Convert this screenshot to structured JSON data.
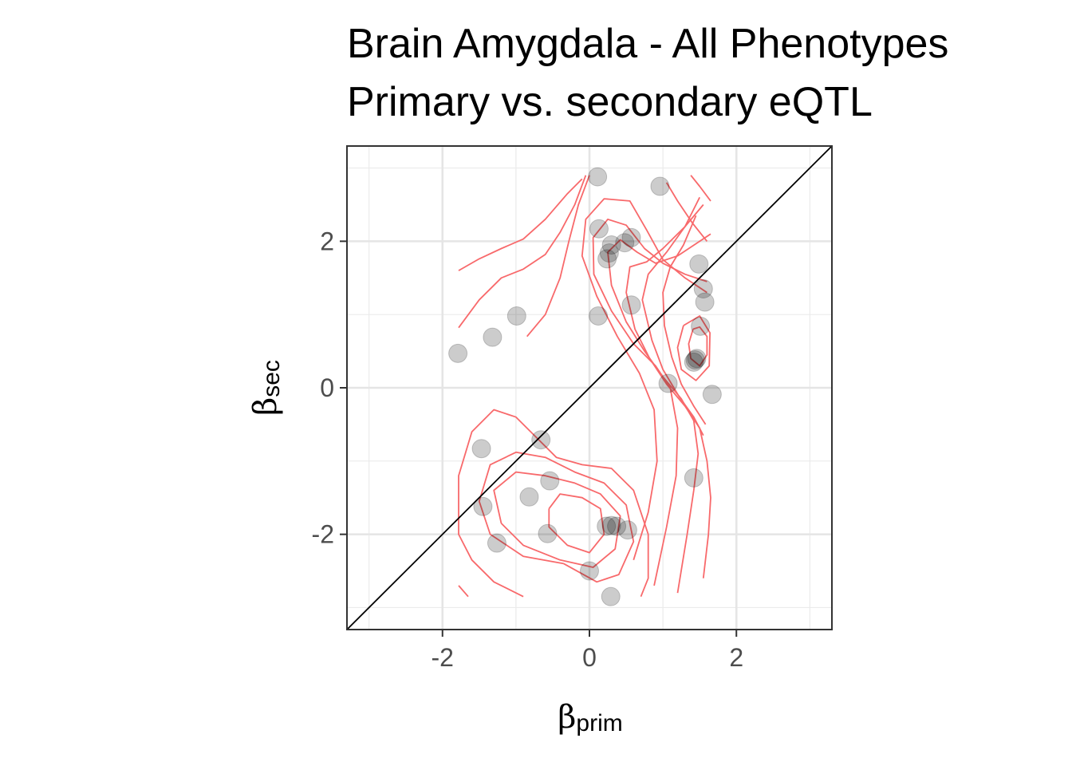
{
  "chart_data": {
    "type": "scatter",
    "title": "Brain Amygdala - All Phenotypes",
    "subtitle": "Primary vs. secondary eQTL",
    "xlabel": "β",
    "xlabel_sub": "prim",
    "ylabel": "β",
    "ylabel_sub": "sec",
    "xlim": [
      -3.3,
      3.3
    ],
    "ylim": [
      -3.3,
      3.3
    ],
    "xticks": [
      -2,
      0,
      2
    ],
    "yticks": [
      -2,
      0,
      2
    ],
    "xtick_labels": [
      "-2",
      "0",
      "2"
    ],
    "ytick_labels": [
      "-2",
      "0",
      "2"
    ],
    "grid": true,
    "reference_line": "y = x",
    "point_color": "#000000",
    "contour_color": "#f8696b",
    "points": [
      {
        "x": -1.79,
        "y": 0.47
      },
      {
        "x": -1.32,
        "y": 0.69
      },
      {
        "x": -0.99,
        "y": 0.98
      },
      {
        "x": 0.11,
        "y": 2.88
      },
      {
        "x": 0.13,
        "y": 2.17
      },
      {
        "x": 0.24,
        "y": 1.76
      },
      {
        "x": 0.27,
        "y": 1.84
      },
      {
        "x": 0.3,
        "y": 1.95
      },
      {
        "x": 0.48,
        "y": 1.98
      },
      {
        "x": 0.57,
        "y": 2.05
      },
      {
        "x": 0.96,
        "y": 2.75
      },
      {
        "x": 1.49,
        "y": 1.69
      },
      {
        "x": 1.55,
        "y": 1.35
      },
      {
        "x": 1.57,
        "y": 1.17
      },
      {
        "x": 0.12,
        "y": 0.98
      },
      {
        "x": 0.57,
        "y": 1.13
      },
      {
        "x": 1.51,
        "y": 0.84
      },
      {
        "x": 1.42,
        "y": 0.35
      },
      {
        "x": 1.44,
        "y": 0.38
      },
      {
        "x": 1.46,
        "y": 0.4
      },
      {
        "x": 1.07,
        "y": 0.06
      },
      {
        "x": 1.67,
        "y": -0.09
      },
      {
        "x": -1.47,
        "y": -0.83
      },
      {
        "x": -0.66,
        "y": -0.71
      },
      {
        "x": -0.54,
        "y": -1.27
      },
      {
        "x": -0.82,
        "y": -1.49
      },
      {
        "x": -1.45,
        "y": -1.62
      },
      {
        "x": -0.57,
        "y": -1.99
      },
      {
        "x": -1.26,
        "y": -2.12
      },
      {
        "x": 0.23,
        "y": -1.89
      },
      {
        "x": 0.3,
        "y": -1.88
      },
      {
        "x": 0.37,
        "y": -1.89
      },
      {
        "x": 0.52,
        "y": -1.94
      },
      {
        "x": 1.42,
        "y": -1.23
      },
      {
        "x": 0.0,
        "y": -2.5
      },
      {
        "x": 0.29,
        "y": -2.85
      }
    ],
    "contours": [
      [
        [
          -1.78,
          1.6
        ],
        [
          -1.5,
          1.76
        ],
        [
          -1.2,
          1.9
        ],
        [
          -0.9,
          2.03
        ],
        [
          -0.6,
          2.3
        ],
        [
          -0.3,
          2.65
        ],
        [
          -0.1,
          2.85
        ]
      ],
      [
        [
          -1.78,
          0.82
        ],
        [
          -1.5,
          1.2
        ],
        [
          -1.2,
          1.5
        ],
        [
          -0.9,
          1.62
        ],
        [
          -0.6,
          1.82
        ],
        [
          -0.4,
          2.12
        ],
        [
          -0.2,
          2.5
        ],
        [
          -0.05,
          2.9
        ]
      ],
      [
        [
          -0.85,
          0.7
        ],
        [
          -0.6,
          1.0
        ],
        [
          -0.4,
          1.5
        ],
        [
          -0.28,
          2.0
        ],
        [
          -0.15,
          2.5
        ],
        [
          0.0,
          2.9
        ]
      ],
      [
        [
          0.6,
          -2.35
        ],
        [
          0.8,
          -1.7
        ],
        [
          0.92,
          -1.0
        ],
        [
          0.88,
          -0.3
        ],
        [
          0.68,
          0.2
        ],
        [
          0.38,
          0.7
        ],
        [
          0.1,
          1.25
        ],
        [
          -0.1,
          1.8
        ],
        [
          -0.05,
          2.3
        ],
        [
          0.2,
          2.58
        ],
        [
          0.55,
          2.55
        ],
        [
          0.78,
          2.15
        ],
        [
          1.0,
          1.75
        ],
        [
          1.3,
          1.5
        ],
        [
          1.6,
          1.3
        ]
      ],
      [
        [
          0.88,
          -2.7
        ],
        [
          1.05,
          -1.9
        ],
        [
          1.18,
          -1.2
        ],
        [
          1.2,
          -0.55
        ],
        [
          1.1,
          0.0
        ],
        [
          0.9,
          0.3
        ],
        [
          0.6,
          0.6
        ],
        [
          0.3,
          1.05
        ],
        [
          0.06,
          1.55
        ],
        [
          0.05,
          2.05
        ],
        [
          0.25,
          2.3
        ],
        [
          0.5,
          2.22
        ],
        [
          0.75,
          1.9
        ],
        [
          1.0,
          1.7
        ],
        [
          1.3,
          1.55
        ],
        [
          1.6,
          1.45
        ]
      ],
      [
        [
          1.2,
          -2.8
        ],
        [
          1.33,
          -2.0
        ],
        [
          1.42,
          -1.4
        ],
        [
          1.48,
          -0.9
        ],
        [
          1.42,
          -0.45
        ],
        [
          1.25,
          -0.15
        ],
        [
          1.0,
          0.15
        ],
        [
          0.75,
          0.5
        ],
        [
          0.5,
          0.9
        ],
        [
          0.3,
          1.4
        ],
        [
          0.25,
          1.85
        ],
        [
          0.42,
          2.02
        ],
        [
          0.65,
          1.85
        ],
        [
          0.9,
          1.7
        ],
        [
          1.2,
          1.8
        ],
        [
          1.5,
          2.0
        ],
        [
          1.65,
          2.1
        ]
      ],
      [
        [
          1.55,
          -2.6
        ],
        [
          1.62,
          -2.0
        ],
        [
          1.65,
          -1.5
        ],
        [
          1.6,
          -1.0
        ],
        [
          1.5,
          -0.55
        ],
        [
          1.3,
          -0.25
        ],
        [
          1.05,
          0.05
        ],
        [
          0.82,
          0.4
        ],
        [
          0.62,
          0.8
        ],
        [
          0.5,
          1.3
        ],
        [
          0.55,
          1.65
        ],
        [
          0.78,
          1.72
        ],
        [
          1.0,
          1.9
        ],
        [
          1.3,
          2.2
        ],
        [
          1.55,
          2.5
        ]
      ],
      [
        [
          1.55,
          -0.65
        ],
        [
          1.42,
          -0.4
        ],
        [
          1.22,
          -0.12
        ],
        [
          1.0,
          0.25
        ],
        [
          0.85,
          0.65
        ],
        [
          0.72,
          1.2
        ],
        [
          0.8,
          1.55
        ],
        [
          1.05,
          1.85
        ],
        [
          1.3,
          2.2
        ],
        [
          1.5,
          2.6
        ]
      ],
      [
        [
          1.58,
          -0.5
        ],
        [
          1.42,
          -0.25
        ],
        [
          1.25,
          0.05
        ],
        [
          1.12,
          0.42
        ],
        [
          1.02,
          0.85
        ],
        [
          1.0,
          1.3
        ],
        [
          1.1,
          1.65
        ],
        [
          1.28,
          1.95
        ],
        [
          1.45,
          2.35
        ]
      ],
      [
        [
          1.05,
          2.8
        ],
        [
          1.2,
          2.55
        ],
        [
          1.4,
          2.25
        ],
        [
          1.6,
          2.0
        ]
      ],
      [
        [
          1.38,
          2.9
        ],
        [
          1.5,
          2.75
        ],
        [
          1.65,
          2.55
        ]
      ],
      [
        [
          1.41,
          0.8
        ],
        [
          1.35,
          0.6
        ],
        [
          1.38,
          0.4
        ],
        [
          1.5,
          0.3
        ],
        [
          1.6,
          0.45
        ],
        [
          1.6,
          0.7
        ],
        [
          1.5,
          0.83
        ],
        [
          1.41,
          0.8
        ]
      ],
      [
        [
          1.28,
          0.85
        ],
        [
          1.2,
          0.55
        ],
        [
          1.25,
          0.25
        ],
        [
          1.45,
          0.1
        ],
        [
          1.63,
          0.3
        ],
        [
          1.64,
          0.75
        ],
        [
          1.5,
          0.98
        ],
        [
          1.28,
          0.85
        ]
      ],
      [
        [
          -1.78,
          -2.7
        ],
        [
          -1.65,
          -2.85
        ]
      ],
      [
        [
          -0.9,
          -2.85
        ],
        [
          -1.3,
          -2.65
        ],
        [
          -1.6,
          -2.35
        ],
        [
          -1.78,
          -2.0
        ],
        [
          -1.78,
          -1.2
        ],
        [
          -1.6,
          -0.6
        ],
        [
          -1.3,
          -0.3
        ],
        [
          -1.0,
          -0.4
        ],
        [
          -0.7,
          -0.7
        ],
        [
          -0.45,
          -0.95
        ],
        [
          -0.1,
          -1.05
        ],
        [
          0.3,
          -1.1
        ],
        [
          0.6,
          -1.4
        ],
        [
          0.8,
          -2.0
        ],
        [
          0.8,
          -2.6
        ],
        [
          0.7,
          -2.85
        ]
      ],
      [
        [
          -0.35,
          -2.4
        ],
        [
          -0.9,
          -2.3
        ],
        [
          -1.35,
          -2.0
        ],
        [
          -1.5,
          -1.55
        ],
        [
          -1.35,
          -1.05
        ],
        [
          -1.0,
          -0.88
        ],
        [
          -0.6,
          -0.95
        ],
        [
          -0.2,
          -1.15
        ],
        [
          0.2,
          -1.3
        ],
        [
          0.5,
          -1.6
        ],
        [
          0.6,
          -2.1
        ],
        [
          0.4,
          -2.55
        ],
        [
          0.1,
          -2.65
        ],
        [
          -0.35,
          -2.4
        ]
      ],
      [
        [
          -1.2,
          -1.85
        ],
        [
          -1.3,
          -1.4
        ],
        [
          -1.0,
          -1.15
        ],
        [
          -0.6,
          -1.2
        ],
        [
          -0.2,
          -1.3
        ],
        [
          0.15,
          -1.45
        ],
        [
          0.42,
          -1.75
        ],
        [
          0.35,
          -2.2
        ],
        [
          0.05,
          -2.45
        ],
        [
          -0.4,
          -2.35
        ],
        [
          -0.9,
          -2.15
        ],
        [
          -1.2,
          -1.85
        ]
      ],
      [
        [
          -0.55,
          -1.65
        ],
        [
          -0.4,
          -1.45
        ],
        [
          -0.1,
          -1.5
        ],
        [
          0.15,
          -1.65
        ],
        [
          0.2,
          -2.0
        ],
        [
          0.0,
          -2.25
        ],
        [
          -0.3,
          -2.15
        ],
        [
          -0.55,
          -1.9
        ],
        [
          -0.55,
          -1.65
        ]
      ]
    ]
  }
}
